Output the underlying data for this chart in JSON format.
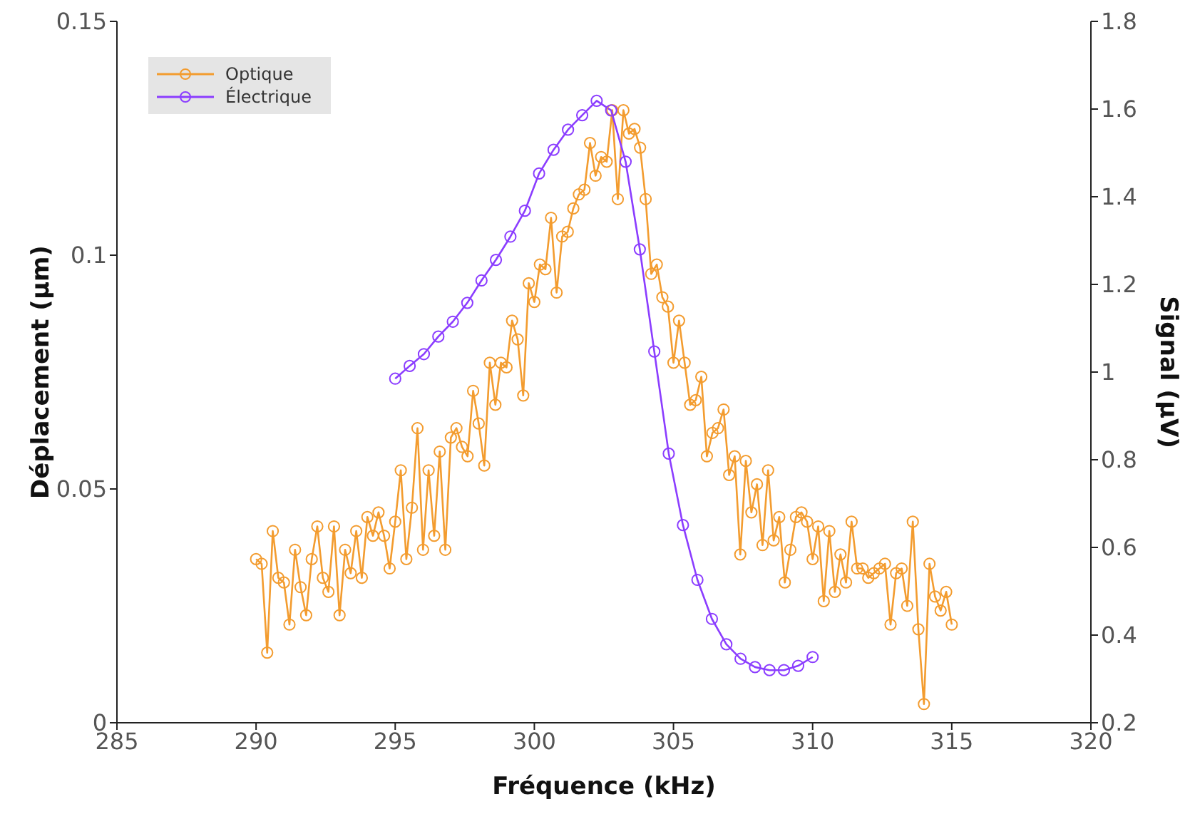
{
  "chart_data": {
    "type": "line",
    "xlabel": "Fréquence (kHz)",
    "ylabel": "Déplacement (µm)",
    "y2label": "Signal (µV)",
    "xlim": [
      285,
      320
    ],
    "xticks": [
      285,
      290,
      295,
      300,
      305,
      310,
      315,
      320
    ],
    "ylim": [
      0,
      0.15
    ],
    "yticks": [
      0,
      0.05,
      0.1,
      0.15
    ],
    "y2lim": [
      0.2,
      1.8
    ],
    "y2ticks": [
      0.2,
      0.4,
      0.6,
      0.8,
      1,
      1.2,
      1.4,
      1.6,
      1.8
    ],
    "legend": "top left",
    "marker": "circle",
    "line_style": "solid",
    "series": [
      {
        "name": "Optique",
        "color": "#f39c2f",
        "x": [
          290,
          290.2,
          290.4,
          290.6,
          290.8,
          291,
          291.2,
          291.4,
          291.6,
          291.8,
          292,
          292.2,
          292.4,
          292.6,
          292.8,
          293,
          293.2,
          293.4,
          293.6,
          293.8,
          294,
          294.2,
          294.4,
          294.6,
          294.8,
          295,
          295.2,
          295.4,
          295.6,
          295.8,
          296,
          296.2,
          296.4,
          296.6,
          296.8,
          297,
          297.2,
          297.4,
          297.6,
          297.8,
          298,
          298.2,
          298.4,
          298.6,
          298.8,
          299,
          299.2,
          299.4,
          299.6,
          299.8,
          300,
          300.2,
          300.4,
          300.6,
          300.8,
          301,
          301.2,
          301.4,
          301.6,
          301.8,
          302,
          302.2,
          302.4,
          302.6,
          302.8,
          303,
          303.2,
          303.4,
          303.6,
          303.8,
          304,
          304.2,
          304.4,
          304.6,
          304.8,
          305,
          305.2,
          305.4,
          305.6,
          305.8,
          306,
          306.2,
          306.4,
          306.6,
          306.8,
          307,
          307.2,
          307.4,
          307.6,
          307.8,
          308,
          308.2,
          308.4,
          308.6,
          308.8,
          309,
          309.2,
          309.4,
          309.6,
          309.8,
          310,
          310.2,
          310.4,
          310.6,
          310.8,
          311,
          311.2,
          311.4,
          311.6,
          311.8,
          312,
          312.2,
          312.4,
          312.6,
          312.8,
          313,
          313.2,
          313.4,
          313.6,
          313.8,
          314,
          314.2,
          314.4,
          314.6,
          314.8,
          315
        ],
        "values": [
          0.035,
          0.034,
          0.015,
          0.041,
          0.031,
          0.03,
          0.021,
          0.037,
          0.029,
          0.023,
          0.035,
          0.042,
          0.031,
          0.028,
          0.042,
          0.023,
          0.037,
          0.032,
          0.041,
          0.031,
          0.044,
          0.04,
          0.045,
          0.04,
          0.033,
          0.043,
          0.054,
          0.035,
          0.046,
          0.063,
          0.037,
          0.054,
          0.04,
          0.058,
          0.037,
          0.061,
          0.063,
          0.059,
          0.057,
          0.071,
          0.064,
          0.055,
          0.077,
          0.068,
          0.077,
          0.076,
          0.086,
          0.082,
          0.07,
          0.094,
          0.09,
          0.098,
          0.097,
          0.108,
          0.092,
          0.104,
          0.105,
          0.11,
          0.113,
          0.114,
          0.124,
          0.117,
          0.121,
          0.12,
          0.131,
          0.112,
          0.131,
          0.126,
          0.127,
          0.123,
          0.112,
          0.096,
          0.098,
          0.091,
          0.089,
          0.077,
          0.086,
          0.077,
          0.068,
          0.069,
          0.074,
          0.057,
          0.062,
          0.063,
          0.067,
          0.053,
          0.057,
          0.036,
          0.056,
          0.045,
          0.051,
          0.038,
          0.054,
          0.039,
          0.044,
          0.03,
          0.037,
          0.044,
          0.045,
          0.043,
          0.035,
          0.042,
          0.026,
          0.041,
          0.028,
          0.036,
          0.03,
          0.043,
          0.033,
          0.033,
          0.031,
          0.032,
          0.033,
          0.034,
          0.021,
          0.032,
          0.033,
          0.025,
          0.043,
          0.02,
          0.004,
          0.034,
          0.027,
          0.024,
          0.028,
          0.021
        ]
      },
      {
        "name": "Électrique",
        "color": "#8b3dff",
        "axis": "y2",
        "x": [
          295,
          295.52,
          296.03,
          296.55,
          297.07,
          297.59,
          298.1,
          298.62,
          299.14,
          299.66,
          300.17,
          300.69,
          301.21,
          301.72,
          302.24,
          302.76,
          303.28,
          303.79,
          304.31,
          304.83,
          305.34,
          305.86,
          306.38,
          306.9,
          307.41,
          307.93,
          308.45,
          308.97,
          309.48,
          310
        ],
        "values": [
          0.985,
          1.014,
          1.041,
          1.081,
          1.115,
          1.158,
          1.209,
          1.256,
          1.309,
          1.368,
          1.453,
          1.507,
          1.553,
          1.586,
          1.619,
          1.597,
          1.48,
          1.28,
          1.047,
          0.814,
          0.651,
          0.526,
          0.437,
          0.379,
          0.346,
          0.327,
          0.32,
          0.32,
          0.33,
          0.35
        ]
      }
    ]
  }
}
